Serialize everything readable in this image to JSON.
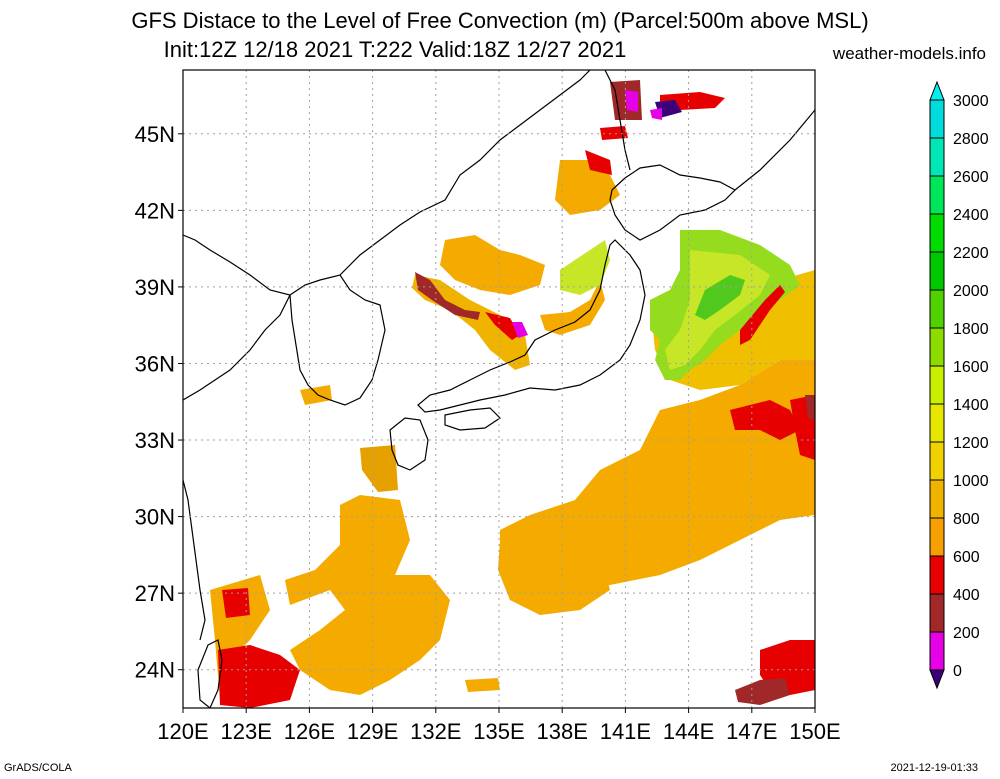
{
  "title_line1": "GFS Distace to the Level of Free Convection (m) (Parcel:500m above MSL)",
  "title_line2": "Init:12Z 12/18 2021 T:222 Valid:18Z 12/27 2021",
  "site": "weather-models.info",
  "footer_left": "GrADS/COLA",
  "footer_right": "2021-12-19-01:33",
  "map": {
    "lon_range": [
      120,
      150
    ],
    "lat_range": [
      22.5,
      47.5
    ],
    "lat_ticks": [
      {
        "value": 24,
        "label": "24N"
      },
      {
        "value": 27,
        "label": "27N"
      },
      {
        "value": 30,
        "label": "30N"
      },
      {
        "value": 33,
        "label": "33N"
      },
      {
        "value": 36,
        "label": "36N"
      },
      {
        "value": 39,
        "label": "39N"
      },
      {
        "value": 42,
        "label": "42N"
      },
      {
        "value": 45,
        "label": "45N"
      }
    ],
    "lon_ticks": [
      {
        "value": 120,
        "label": "120E"
      },
      {
        "value": 123,
        "label": "123E"
      },
      {
        "value": 126,
        "label": "126E"
      },
      {
        "value": 129,
        "label": "129E"
      },
      {
        "value": 132,
        "label": "132E"
      },
      {
        "value": 135,
        "label": "135E"
      },
      {
        "value": 138,
        "label": "138E"
      },
      {
        "value": 141,
        "label": "141E"
      },
      {
        "value": 144,
        "label": "144E"
      },
      {
        "value": 147,
        "label": "147E"
      },
      {
        "value": 150,
        "label": "150E"
      }
    ],
    "grid_lines": true
  },
  "colorbar": {
    "levels": [
      "0",
      "200",
      "400",
      "600",
      "800",
      "1000",
      "1200",
      "1400",
      "1600",
      "1800",
      "2000",
      "2200",
      "2400",
      "2600",
      "2800",
      "3000"
    ],
    "colors": [
      "#3c0078",
      "#e600e6",
      "#a02828",
      "#e60000",
      "#f5a000",
      "#f0b400",
      "#f0d200",
      "#e6e600",
      "#c8f000",
      "#8cdc00",
      "#50d200",
      "#00c800",
      "#00dc00",
      "#00e65a",
      "#00e6b4",
      "#00dcdc",
      "#00f0f0"
    ]
  }
}
